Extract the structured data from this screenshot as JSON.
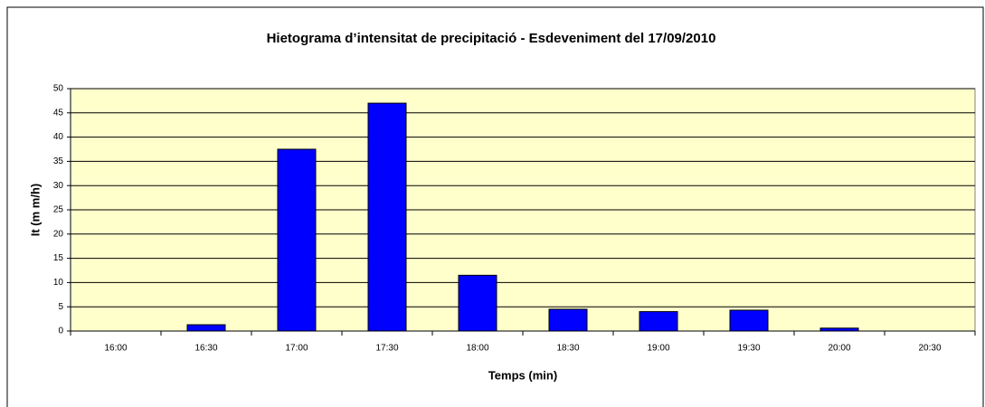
{
  "chart_data": {
    "type": "bar",
    "title": "Hietograma d’intensitat de precipitació - Esdeveniment del 17/09/2010",
    "x_label": "Temps (min)",
    "y_label": "It (m m/h)",
    "categories": [
      "16:00",
      "16:30",
      "17:00",
      "17:30",
      "18:00",
      "18:30",
      "19:00",
      "19:30",
      "20:00",
      "20:30"
    ],
    "values": [
      0,
      1.3,
      37.5,
      47,
      11.5,
      4.5,
      4,
      4.3,
      0.6,
      0
    ],
    "color": "#0000ff",
    "ylim": [
      0,
      50
    ],
    "yticks": [
      0,
      5,
      10,
      15,
      20,
      25,
      30,
      35,
      40,
      45,
      50
    ],
    "grid": true
  }
}
